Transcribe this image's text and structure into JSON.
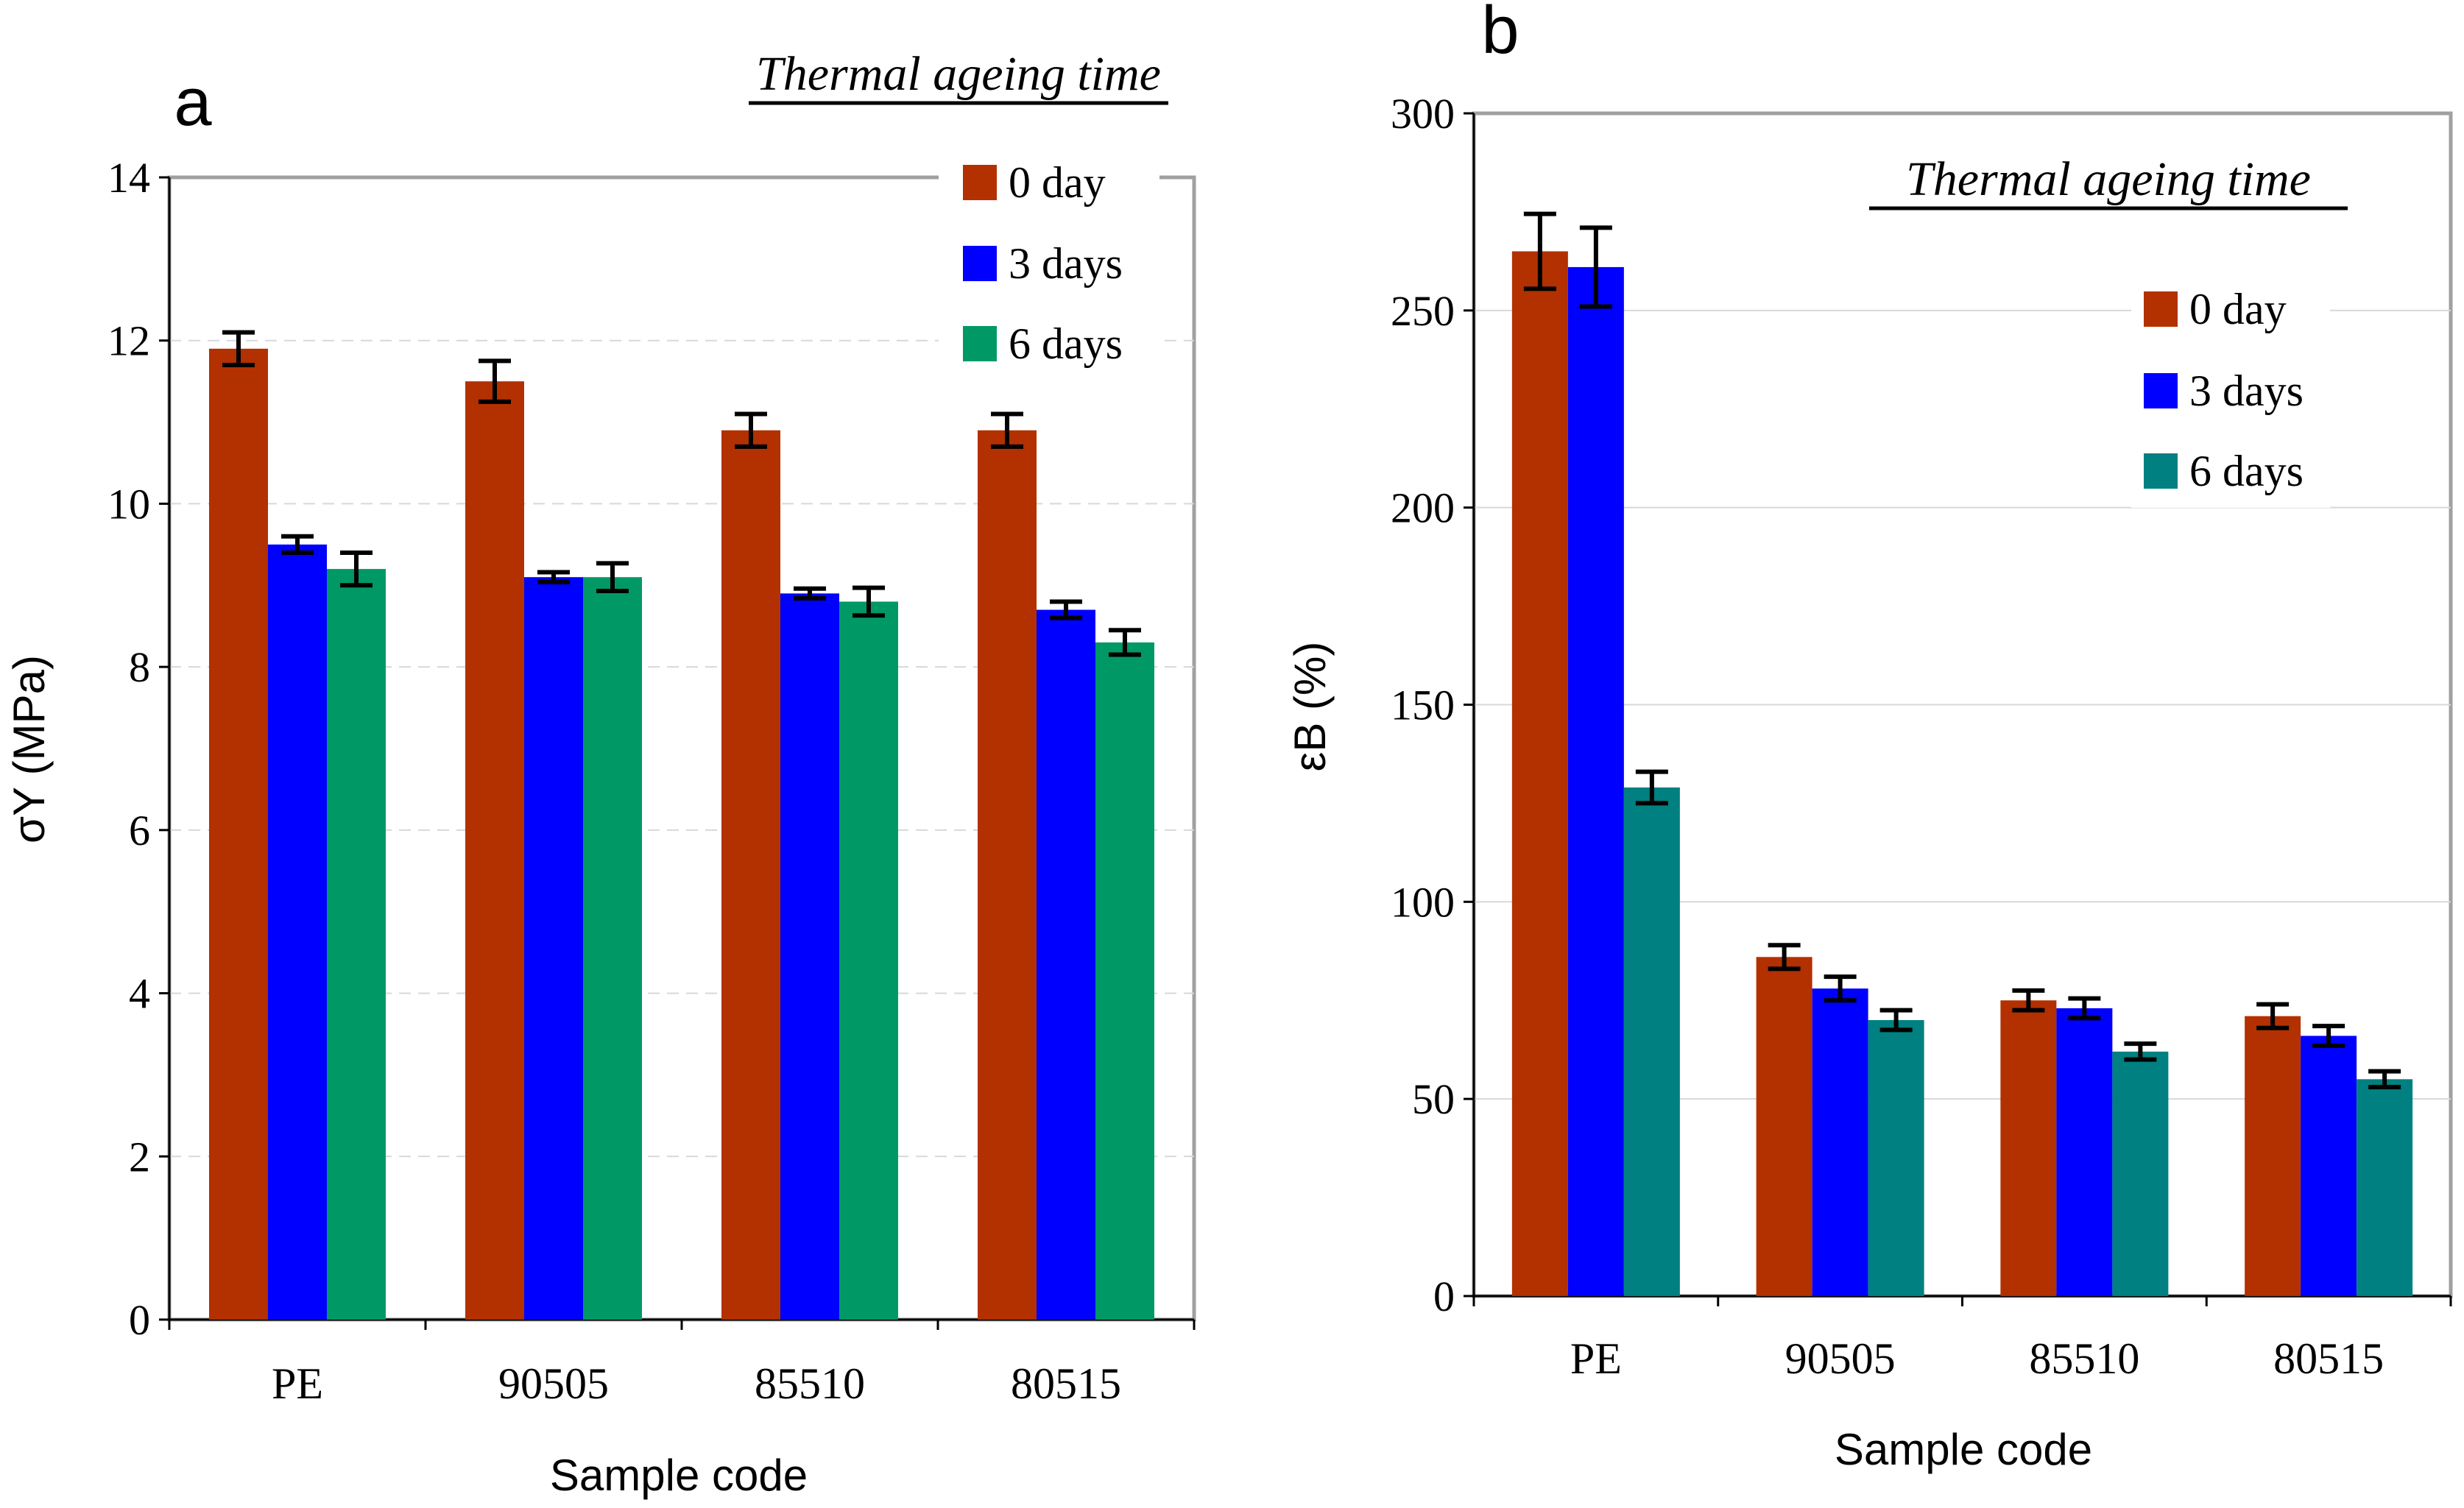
{
  "chart_data": [
    {
      "type": "bar",
      "panel_label": "a",
      "title": "Thermal ageing time",
      "xlabel": "Sample code",
      "ylabel": "σY (MPa)",
      "ylabel_main": "σ",
      "ylabel_sub": "Y",
      "ylabel_unit": " (MPa)",
      "ylim": [
        0,
        14
      ],
      "yticks": [
        0,
        2,
        4,
        6,
        8,
        10,
        12,
        14
      ],
      "grid": "dashed horizontal",
      "legend_placement": "top-right",
      "categories": [
        "PE",
        "90505",
        "85510",
        "80515"
      ],
      "series": [
        {
          "name": "0 day",
          "color": "#b33000",
          "values": [
            11.9,
            11.5,
            10.9,
            10.9
          ],
          "errors": [
            0.2,
            0.25,
            0.2,
            0.2
          ]
        },
        {
          "name": "3 days",
          "color": "#0000ff",
          "values": [
            9.5,
            9.1,
            8.9,
            8.7
          ],
          "errors": [
            0.1,
            0.06,
            0.06,
            0.1
          ]
        },
        {
          "name": "6 days",
          "color": "#009966",
          "values": [
            9.2,
            9.1,
            8.8,
            8.3
          ],
          "errors": [
            0.2,
            0.17,
            0.17,
            0.15
          ]
        }
      ]
    },
    {
      "type": "bar",
      "panel_label": "b",
      "title": "Thermal ageing time",
      "xlabel": "Sample code",
      "ylabel": "εB (%)",
      "ylabel_main": "ε",
      "ylabel_sub": "B",
      "ylabel_unit": " (%)",
      "ylim": [
        0,
        300
      ],
      "yticks": [
        0,
        50,
        100,
        150,
        200,
        250,
        300
      ],
      "grid": "solid horizontal",
      "legend_placement": "top-right",
      "categories": [
        "PE",
        "90505",
        "85510",
        "80515"
      ],
      "series": [
        {
          "name": "0 day",
          "color": "#b33000",
          "values": [
            265,
            86,
            75,
            71
          ],
          "errors": [
            9.5,
            3,
            2.5,
            3
          ]
        },
        {
          "name": "3 days",
          "color": "#0000ff",
          "values": [
            261,
            78,
            73,
            66
          ],
          "errors": [
            10,
            3,
            2.5,
            2.5
          ]
        },
        {
          "name": "6 days",
          "color": "#008080",
          "values": [
            129,
            70,
            62,
            55
          ],
          "errors": [
            4,
            2.5,
            2,
            2
          ]
        }
      ]
    }
  ]
}
